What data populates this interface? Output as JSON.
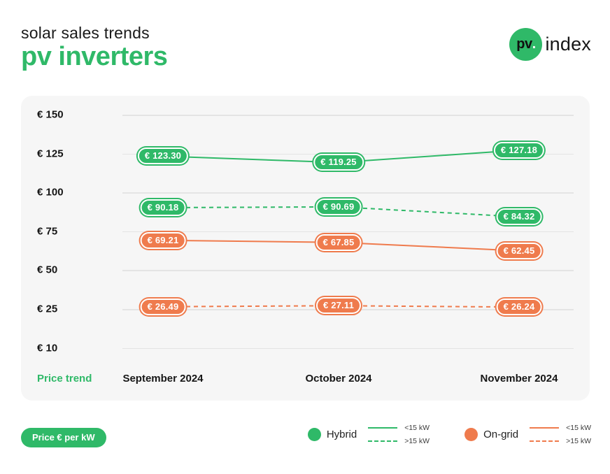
{
  "header": {
    "subtitle": "solar sales trends",
    "title": "pv inverters",
    "logo": {
      "circle_text": "pv",
      "dot": ".",
      "suffix": "index"
    }
  },
  "colors": {
    "green": "#2fb968",
    "orange": "#ef7b4d",
    "panel_bg": "#f6f6f6",
    "gridline": "#e4e4e4",
    "text_dark": "#161616"
  },
  "chart_data": {
    "type": "line",
    "title": "pv inverters price trend",
    "unit_label": "Price € per kW",
    "x_axis_title": "Price trend",
    "categories": [
      "September 2024",
      "October 2024",
      "November 2024"
    ],
    "y_ticks": [
      {
        "label": "€ 150",
        "value": 150
      },
      {
        "label": "€ 125",
        "value": 125
      },
      {
        "label": "€ 100",
        "value": 100
      },
      {
        "label": "€ 75",
        "value": 75
      },
      {
        "label": "€ 50",
        "value": 50
      },
      {
        "label": "€ 25",
        "value": 25
      },
      {
        "label": "€ 10",
        "value": 10
      }
    ],
    "grid": "horizontal, evenly spaced ticks",
    "legend_position": "bottom-right",
    "series": [
      {
        "group": "Hybrid",
        "variant": "<15 kW",
        "line_style": "solid",
        "color": "#2fb968",
        "values": [
          123.3,
          119.25,
          127.18
        ],
        "point_labels": [
          "€ 123.30",
          "€ 119.25",
          "€ 127.18"
        ]
      },
      {
        "group": "Hybrid",
        "variant": ">15 kW",
        "line_style": "dashed",
        "color": "#2fb968",
        "values": [
          90.18,
          90.69,
          84.32
        ],
        "point_labels": [
          "€ 90.18",
          "€ 90.69",
          "€ 84.32"
        ]
      },
      {
        "group": "On-grid",
        "variant": "<15 kW",
        "line_style": "solid",
        "color": "#ef7b4d",
        "values": [
          69.21,
          67.85,
          62.45
        ],
        "point_labels": [
          "€ 69.21",
          "€ 67.85",
          "€ 62.45"
        ]
      },
      {
        "group": "On-grid",
        "variant": ">15 kW",
        "line_style": "dashed",
        "color": "#ef7b4d",
        "values": [
          26.49,
          27.11,
          26.24
        ],
        "point_labels": [
          "€ 26.49",
          "€ 27.11",
          "€ 26.24"
        ]
      }
    ],
    "legend": [
      {
        "name": "Hybrid",
        "color": "#2fb968",
        "entries": [
          {
            "label": "<15 kW",
            "line_style": "solid"
          },
          {
            "label": ">15 kW",
            "line_style": "dashed"
          }
        ]
      },
      {
        "name": "On-grid",
        "color": "#ef7b4d",
        "entries": [
          {
            "label": "<15 kW",
            "line_style": "solid"
          },
          {
            "label": ">15 kW",
            "line_style": "dashed"
          }
        ]
      }
    ]
  },
  "footer": {
    "unit_badge": "Price € per kW"
  }
}
